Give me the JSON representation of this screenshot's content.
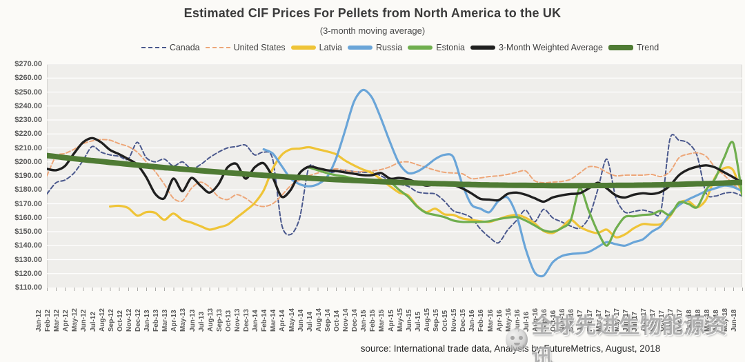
{
  "watermark": "全球先进生物能源资讯",
  "source_note": "source: International trade data, Analysis by FutureMetrics, August, 2018",
  "colors": {
    "background": "#fbfaf7",
    "plot_background": "#efeeeb",
    "gridline": "#ffffff",
    "plot_border": "#d6d5d2",
    "axis_text": "#595959",
    "title_text": "#3b3b3b"
  },
  "chart_data": {
    "type": "line",
    "title": "Estimated CIF Prices For Pellets from North America to the UK",
    "subtitle": "(3-month moving average)",
    "legend_position": "top",
    "grid": true,
    "y_axis": {
      "min": 110,
      "max": 270,
      "step": 10,
      "tick_labels": [
        "$270.00",
        "$260.00",
        "$250.00",
        "$240.00",
        "$230.00",
        "$220.00",
        "$210.00",
        "$200.00",
        "$190.00",
        "$180.00",
        "$170.00",
        "$160.00",
        "$150.00",
        "$140.00",
        "$130.00",
        "$120.00",
        "$110.00"
      ]
    },
    "x": [
      "Jan-12",
      "Feb-12",
      "Mar-12",
      "Apr-12",
      "May-12",
      "Jun-12",
      "Jul-12",
      "Aug-12",
      "Sep-12",
      "Oct-12",
      "Nov-12",
      "Dec-12",
      "Jan-13",
      "Feb-13",
      "Mar-13",
      "Apr-13",
      "May-13",
      "Jun-13",
      "Jul-13",
      "Aug-13",
      "Sep-13",
      "Oct-13",
      "Nov-13",
      "Dec-13",
      "Jan-14",
      "Feb-14",
      "Mar-14",
      "Apr-14",
      "May-14",
      "Jun-14",
      "Jul-14",
      "Aug-14",
      "Sep-14",
      "Oct-14",
      "Nov-14",
      "Dec-14",
      "Jan-15",
      "Feb-15",
      "Mar-15",
      "Apr-15",
      "May-15",
      "Jun-15",
      "Jul-15",
      "Aug-15",
      "Sep-15",
      "Oct-15",
      "Nov-15",
      "Dec-15",
      "Jan-16",
      "Feb-16",
      "Mar-16",
      "Apr-16",
      "May-16",
      "Jun-16",
      "Jul-16",
      "Aug-16",
      "Sep-16",
      "Oct-16",
      "Nov-16",
      "Dec-16",
      "Jan-17",
      "Feb-17",
      "Mar-17",
      "Apr-17",
      "May-17",
      "Jun-17",
      "Jul-17",
      "Aug-17",
      "Sep-17",
      "Oct-17",
      "Nov-17",
      "Dec-17",
      "Jan-18",
      "Feb-18",
      "Mar-18",
      "Apr-18",
      "May-18",
      "Jun-18"
    ],
    "series": [
      {
        "name": "Canada",
        "color": "#49578c",
        "dashed": true,
        "width": 2,
        "values": [
          177,
          185,
          187,
          192,
          201,
          211,
          207,
          205,
          204,
          202,
          214,
          203,
          200,
          202,
          197,
          200,
          195,
          198,
          203,
          207,
          210,
          211,
          212,
          205,
          207,
          202,
          155,
          148,
          160,
          196,
          194,
          192,
          193,
          194,
          193,
          192.5,
          192.5,
          190,
          186.5,
          184,
          182.5,
          178.5,
          177.5,
          177,
          172,
          165,
          163,
          160,
          152,
          146,
          142,
          151,
          158,
          165.5,
          157,
          166,
          160,
          157,
          154,
          152.5,
          160,
          180,
          202,
          174.5,
          164,
          164.5,
          165.5,
          164,
          165,
          216.5,
          215.5,
          213.5,
          204.5,
          177.5,
          175.5,
          177.5,
          178,
          175.5
        ]
      },
      {
        "name": "United States",
        "color": "#eda678",
        "dashed": true,
        "width": 2,
        "values": [
          190,
          204,
          206,
          209,
          213,
          215,
          216,
          215.5,
          213,
          211,
          207,
          200,
          193,
          184,
          174,
          172,
          181,
          185.5,
          182,
          175,
          173,
          176.5,
          174,
          169.5,
          168,
          170,
          176,
          183,
          187,
          190,
          192,
          193.5,
          195,
          194,
          193,
          193,
          193.5,
          194.5,
          196.5,
          199.5,
          200,
          198,
          196,
          194,
          192.5,
          192,
          191.5,
          188,
          188.5,
          189.5,
          190,
          191,
          192.5,
          193.5,
          186.5,
          185,
          185.5,
          186,
          187.5,
          192,
          196.5,
          196,
          192.5,
          190,
          190.5,
          190.5,
          190.5,
          191,
          189.5,
          193,
          203,
          205.5,
          206.5,
          204,
          196,
          190.5,
          184,
          178.5
        ]
      },
      {
        "name": "Latvia",
        "color": "#efc437",
        "dashed": false,
        "width": 3.2,
        "values": [
          null,
          null,
          null,
          null,
          null,
          null,
          null,
          168,
          168.5,
          167,
          161.5,
          164,
          163.5,
          158.5,
          163,
          158.5,
          156.5,
          154,
          151.5,
          153,
          155,
          160,
          165,
          170.5,
          179.5,
          195,
          205,
          209,
          209.5,
          210.5,
          209,
          207.5,
          205.5,
          201,
          197.5,
          194.5,
          192,
          187.5,
          182.5,
          178,
          176,
          168.5,
          164,
          166.5,
          162.5,
          162,
          159.5,
          158.5,
          157.5,
          157,
          159,
          161,
          162,
          160,
          156,
          150.5,
          149,
          153,
          158.5,
          153.5,
          150.5,
          149,
          151.5,
          146,
          148,
          152.5,
          155.5,
          155,
          155.5,
          161,
          170.5,
          172,
          167.5,
          173,
          189,
          195.5,
          194,
          176.5
        ]
      },
      {
        "name": "Russia",
        "color": "#6aa5d8",
        "dashed": false,
        "width": 3.2,
        "values": [
          null,
          null,
          null,
          null,
          null,
          null,
          null,
          null,
          null,
          null,
          null,
          null,
          null,
          null,
          null,
          null,
          null,
          null,
          null,
          null,
          null,
          null,
          null,
          null,
          209,
          206,
          197,
          188,
          184,
          182.5,
          184,
          189,
          202,
          222,
          243,
          251.5,
          246,
          231,
          214,
          199,
          192,
          193,
          197,
          202,
          205,
          203.5,
          184,
          169.5,
          166.5,
          164,
          172,
          174.5,
          162,
          138,
          121,
          118.5,
          128,
          132.5,
          134,
          134.5,
          135.5,
          139,
          142.5,
          141,
          140,
          142.5,
          144.5,
          150,
          154,
          163,
          169,
          173,
          176,
          179,
          181,
          183,
          182,
          179
        ]
      },
      {
        "name": "Estonia",
        "color": "#6fae4e",
        "dashed": false,
        "width": 3.2,
        "values": [
          null,
          null,
          null,
          null,
          null,
          null,
          null,
          null,
          null,
          null,
          null,
          null,
          null,
          null,
          null,
          null,
          null,
          null,
          null,
          null,
          null,
          null,
          null,
          null,
          null,
          null,
          null,
          null,
          null,
          196,
          194,
          192,
          190.5,
          189.5,
          188,
          187.5,
          187,
          186.5,
          185.5,
          180,
          175,
          168,
          163.5,
          162,
          160.5,
          158,
          157,
          157,
          157,
          157.5,
          159,
          160,
          160.5,
          158,
          154.5,
          151,
          150,
          152.5,
          158,
          181,
          165,
          150,
          140,
          152,
          160.5,
          161,
          162,
          162.5,
          165,
          162,
          171,
          170,
          167.5,
          180,
          188,
          203,
          213.5,
          176
        ]
      },
      {
        "name": "3-Month Weighted Average",
        "color": "#1f1f1f",
        "dashed": false,
        "width": 3.4,
        "values": [
          195,
          194,
          197,
          206,
          214,
          217,
          214,
          208.5,
          205.5,
          202,
          198,
          189,
          177,
          174,
          188,
          179,
          188.5,
          183,
          178,
          184,
          196,
          198.5,
          188,
          196,
          199,
          189,
          175,
          180,
          192,
          196.5,
          195.5,
          194,
          193.5,
          192.5,
          191.5,
          190.5,
          190.5,
          192,
          188,
          188.5,
          187.5,
          185,
          183,
          184,
          184.5,
          183.5,
          181,
          177.5,
          173.5,
          173,
          172.5,
          177,
          178,
          176.5,
          174,
          171.5,
          174.5,
          176,
          177,
          177.5,
          181,
          185,
          181,
          176,
          174.5,
          176.5,
          177.5,
          177,
          178.5,
          183,
          190.5,
          194.5,
          196.5,
          197.5,
          196,
          192.5,
          189,
          185
        ]
      },
      {
        "name": "Trend",
        "color": "#4f7b34",
        "dashed": false,
        "width": 8,
        "values": [
          204.5,
          203.8,
          203,
          202.3,
          201.6,
          200.9,
          200.3,
          199.6,
          199,
          198.3,
          197.7,
          197.1,
          196.5,
          195.9,
          195.4,
          194.8,
          194.3,
          193.7,
          193.2,
          192.7,
          192.2,
          191.8,
          191.3,
          190.8,
          190.4,
          190,
          189.5,
          189.1,
          188.8,
          188.4,
          188,
          187.7,
          187.3,
          187,
          186.7,
          186.4,
          186.1,
          185.8,
          185.6,
          185.3,
          185.1,
          184.8,
          184.6,
          184.4,
          184.3,
          184.1,
          183.9,
          183.8,
          183.6,
          183.5,
          183.4,
          183.3,
          183.2,
          183.2,
          183.1,
          183.1,
          183,
          183,
          183,
          183,
          183,
          183.1,
          183.1,
          183.2,
          183.2,
          183.3,
          183.4,
          183.5,
          183.6,
          183.8,
          183.9,
          184.1,
          184.3,
          184.4,
          184.6,
          184.8,
          185.1,
          185.3
        ]
      }
    ]
  }
}
